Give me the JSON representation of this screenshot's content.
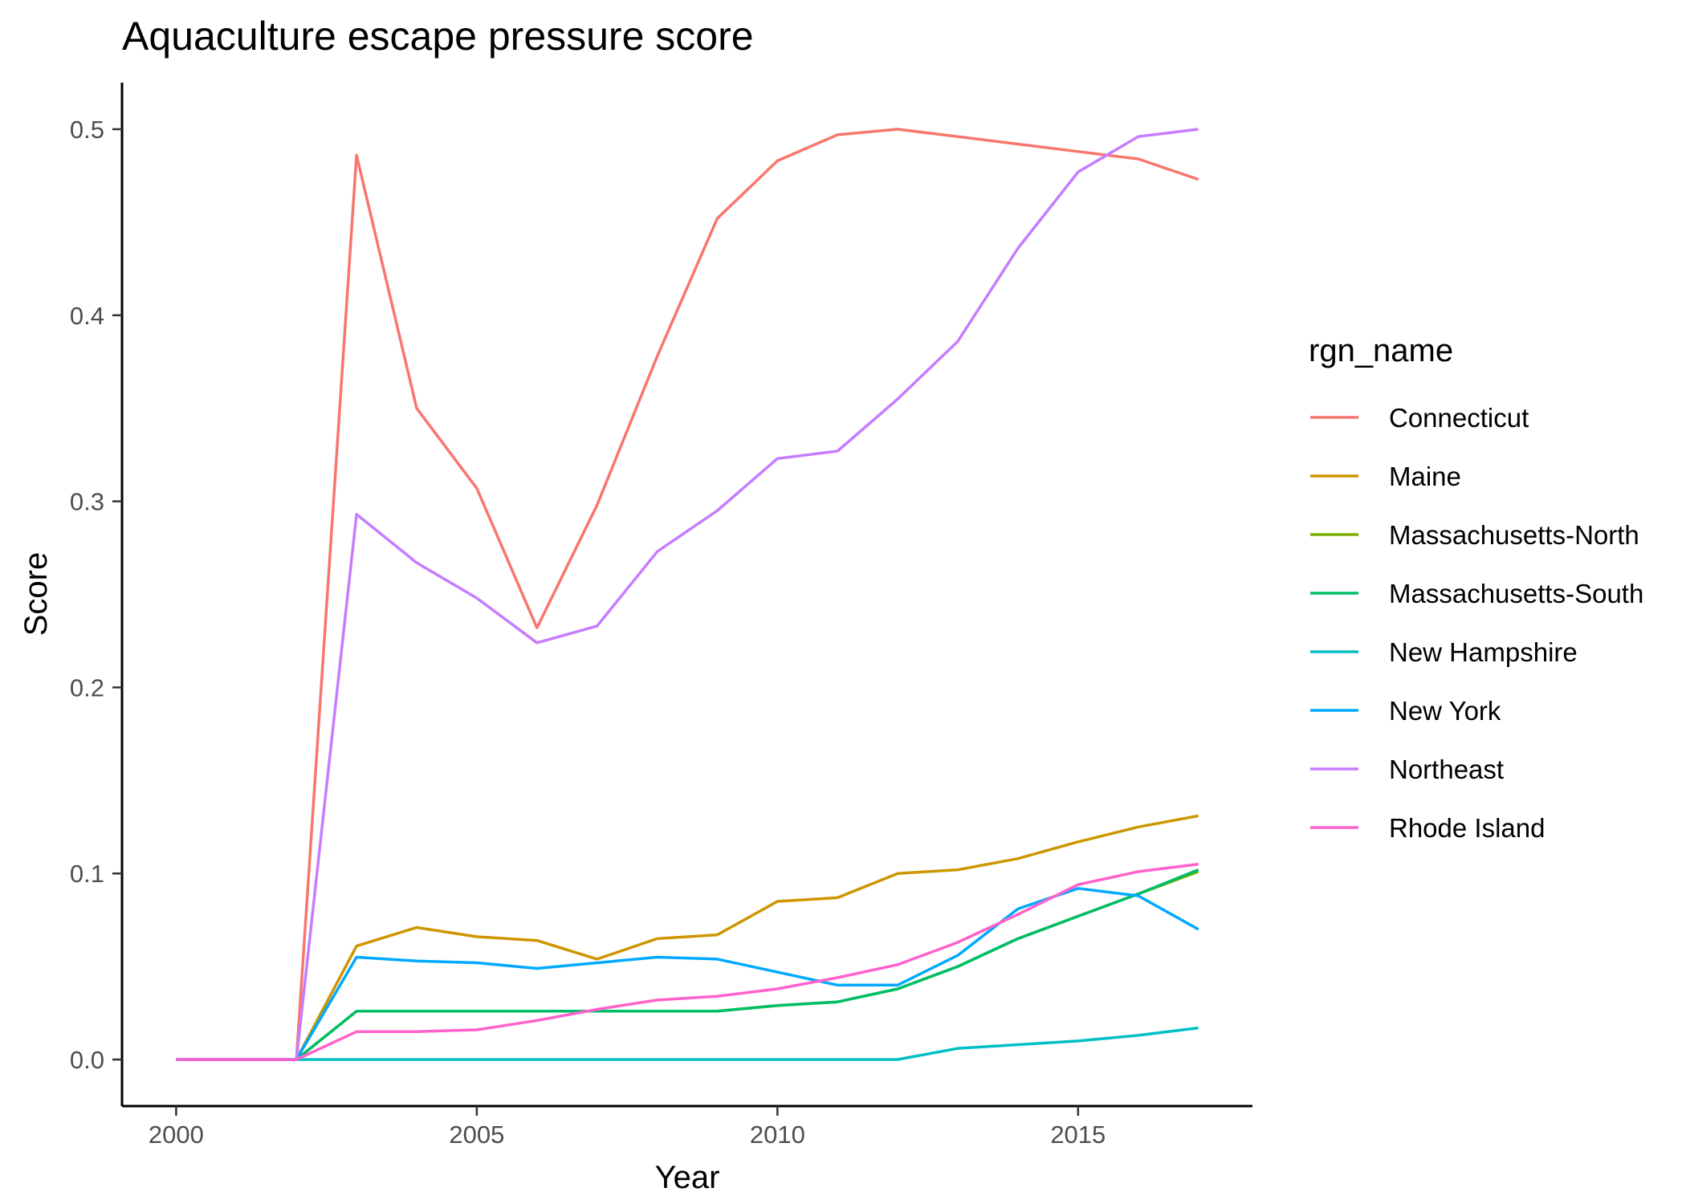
{
  "chart_data": {
    "type": "line",
    "title": "Aquaculture escape pressure score",
    "xlabel": "Year",
    "ylabel": "Score",
    "xlim": [
      1999.1,
      2017.9
    ],
    "ylim": [
      -0.025,
      0.525
    ],
    "x_ticks": [
      2000,
      2005,
      2010,
      2015
    ],
    "x_tick_labels": [
      "2000",
      "2005",
      "2010",
      "2015"
    ],
    "y_ticks": [
      0,
      0.1,
      0.2,
      0.3,
      0.4,
      0.5
    ],
    "y_tick_labels": [
      "0.0",
      "0.1",
      "0.2",
      "0.3",
      "0.4",
      "0.5"
    ],
    "grid": false,
    "legend_title": "rgn_name",
    "legend_position": "right",
    "x": [
      2000,
      2001,
      2002,
      2003,
      2004,
      2005,
      2006,
      2007,
      2008,
      2009,
      2010,
      2011,
      2012,
      2013,
      2014,
      2015,
      2016,
      2017
    ],
    "series": [
      {
        "name": "Connecticut",
        "color": "#F8766D",
        "values": [
          0,
          0,
          0,
          0.486,
          0.35,
          0.307,
          0.232,
          0.298,
          0.378,
          0.452,
          0.483,
          0.497,
          0.5,
          0.496,
          0.492,
          0.488,
          0.484,
          0.473
        ]
      },
      {
        "name": "Maine",
        "color": "#CD9600",
        "values": [
          0,
          0,
          0,
          0.061,
          0.071,
          0.066,
          0.064,
          0.054,
          0.065,
          0.067,
          0.085,
          0.087,
          0.1,
          0.102,
          0.108,
          0.117,
          0.125,
          0.131
        ]
      },
      {
        "name": "Massachusetts-North",
        "color": "#7CAE00",
        "values": [
          0,
          0,
          0,
          0.026,
          0.026,
          0.026,
          0.026,
          0.026,
          0.026,
          0.026,
          0.029,
          0.031,
          0.038,
          0.05,
          0.065,
          0.077,
          0.089,
          0.101
        ]
      },
      {
        "name": "Massachusetts-South",
        "color": "#00BE67",
        "values": [
          0,
          0,
          0,
          0.026,
          0.026,
          0.026,
          0.026,
          0.026,
          0.026,
          0.026,
          0.029,
          0.031,
          0.038,
          0.05,
          0.065,
          0.077,
          0.089,
          0.102
        ]
      },
      {
        "name": "New Hampshire",
        "color": "#00BFC4",
        "values": [
          0,
          0,
          0,
          0,
          0,
          0,
          0,
          0,
          0,
          0,
          0,
          0,
          0,
          0.006,
          0.008,
          0.01,
          0.013,
          0.017
        ]
      },
      {
        "name": "New York",
        "color": "#00A9FF",
        "values": [
          0,
          0,
          0,
          0.055,
          0.053,
          0.052,
          0.049,
          0.052,
          0.055,
          0.054,
          0.047,
          0.04,
          0.04,
          0.056,
          0.081,
          0.092,
          0.088,
          0.07
        ]
      },
      {
        "name": "Northeast",
        "color": "#C77CFF",
        "values": [
          0,
          0,
          0,
          0.293,
          0.267,
          0.248,
          0.224,
          0.233,
          0.273,
          0.295,
          0.323,
          0.327,
          0.355,
          0.386,
          0.436,
          0.477,
          0.496,
          0.5
        ]
      },
      {
        "name": "Rhode Island",
        "color": "#FF61CC",
        "values": [
          0,
          0,
          0,
          0.015,
          0.015,
          0.016,
          0.021,
          0.027,
          0.032,
          0.034,
          0.038,
          0.044,
          0.051,
          0.063,
          0.078,
          0.094,
          0.101,
          0.105
        ]
      }
    ]
  }
}
